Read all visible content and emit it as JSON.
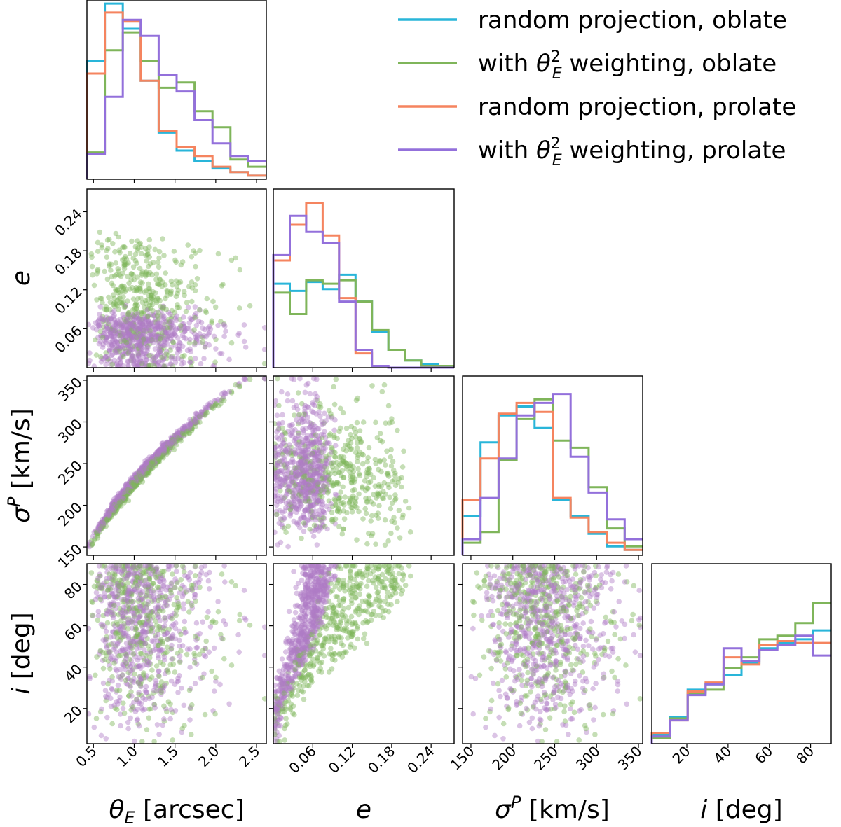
{
  "chart_data": {
    "type": "corner",
    "legend": {
      "placement": "top-right",
      "entries": [
        {
          "label": "random projection, oblate",
          "color": "#29b5d9"
        },
        {
          "label_pre": "with ",
          "label_math": "θ",
          "label_sub": "E",
          "label_sup": "2",
          "label_post": " weighting, oblate",
          "color": "#7fb55a"
        },
        {
          "label": "random projection, prolate",
          "color": "#f5845f"
        },
        {
          "label_pre": "with ",
          "label_math": "θ",
          "label_sub": "E",
          "label_sup": "2",
          "label_post": " weighting, prolate",
          "color": "#9370db"
        }
      ]
    },
    "scatter_colors": {
      "oblate": "#7fb55a",
      "prolate": "#b07cc6"
    },
    "variables": [
      {
        "key": "thetaE",
        "label": "θ",
        "label_sub": "E",
        "label_rest": " [arcsec]",
        "range": [
          0.42,
          2.62
        ],
        "ticks": [
          0.5,
          1.0,
          1.5,
          2.0,
          2.5
        ],
        "tick_labels": [
          "0.5",
          "1.0",
          "1.5",
          "2.0",
          "2.5"
        ]
      },
      {
        "key": "e",
        "label": "e",
        "range": [
          0.0,
          0.275
        ],
        "ticks": [
          0.06,
          0.12,
          0.18,
          0.24
        ],
        "tick_labels": [
          "0.06",
          "0.12",
          "0.18",
          "0.24"
        ]
      },
      {
        "key": "sigma",
        "label": "σ",
        "label_sup": "P",
        "label_rest": " [km/s]",
        "range": [
          140,
          355
        ],
        "ticks": [
          150,
          200,
          250,
          300,
          350
        ],
        "tick_labels": [
          "150",
          "200",
          "250",
          "300",
          "350"
        ]
      },
      {
        "key": "inc",
        "label": "i",
        "label_rest": " [deg]",
        "range": [
          3,
          90
        ],
        "ticks": [
          20,
          40,
          60,
          80
        ],
        "tick_labels": [
          "20",
          "40",
          "60",
          "80"
        ]
      }
    ],
    "histograms": {
      "thetaE": {
        "edges": [
          0.42,
          0.64,
          0.86,
          1.08,
          1.3,
          1.52,
          1.74,
          1.96,
          2.18,
          2.4,
          2.62
        ],
        "series": [
          {
            "name": "random projection, oblate",
            "color": "#29b5d9",
            "values": [
              0.66,
              0.98,
              0.84,
              0.55,
              0.26,
              0.16,
              0.1,
              0.06,
              0.04,
              0.02
            ]
          },
          {
            "name": "with θE² weighting, oblate",
            "color": "#7fb55a",
            "values": [
              0.15,
              0.72,
              0.82,
              0.66,
              0.51,
              0.54,
              0.38,
              0.29,
              0.11,
              0.07
            ]
          },
          {
            "name": "random projection, prolate",
            "color": "#f5845f",
            "values": [
              0.59,
              0.93,
              0.88,
              0.55,
              0.27,
              0.18,
              0.13,
              0.07,
              0.04,
              0.02
            ]
          },
          {
            "name": "with θE² weighting, prolate",
            "color": "#9370db",
            "values": [
              0.14,
              0.46,
              0.89,
              0.8,
              0.58,
              0.49,
              0.33,
              0.2,
              0.13,
              0.1
            ]
          }
        ]
      },
      "e": {
        "edges": [
          0.0,
          0.025,
          0.05,
          0.075,
          0.1,
          0.125,
          0.15,
          0.175,
          0.2,
          0.225,
          0.25,
          0.275
        ],
        "series": [
          {
            "name": "random projection, oblate",
            "color": "#29b5d9",
            "values": [
              0.47,
              0.43,
              0.48,
              0.44,
              0.52,
              0.37,
              0.2,
              0.1,
              0.04,
              0.02,
              0.01
            ]
          },
          {
            "name": "with θE² weighting, oblate",
            "color": "#7fb55a",
            "values": [
              0.42,
              0.3,
              0.49,
              0.47,
              0.49,
              0.37,
              0.21,
              0.1,
              0.04,
              0.01,
              0.01
            ]
          },
          {
            "name": "random projection, prolate",
            "color": "#f5845f",
            "values": [
              0.6,
              0.8,
              0.92,
              0.74,
              0.39,
              0.08,
              0.01,
              0.0,
              0.0,
              0.0,
              0.0
            ]
          },
          {
            "name": "with θE² weighting, prolate",
            "color": "#9370db",
            "values": [
              0.63,
              0.85,
              0.76,
              0.7,
              0.37,
              0.1,
              0.01,
              0.0,
              0.0,
              0.0,
              0.0
            ]
          }
        ]
      },
      "sigma": {
        "edges": [
          140,
          161.5,
          183,
          204.5,
          226,
          247.5,
          269,
          290.5,
          312,
          333.5,
          355
        ],
        "series": [
          {
            "name": "random projection, oblate",
            "color": "#29b5d9",
            "values": [
              0.22,
              0.63,
              0.78,
              0.83,
              0.71,
              0.31,
              0.22,
              0.12,
              0.05,
              0.03
            ]
          },
          {
            "name": "with θE² weighting, oblate",
            "color": "#7fb55a",
            "values": [
              0.07,
              0.13,
              0.53,
              0.76,
              0.87,
              0.64,
              0.6,
              0.38,
              0.15,
              0.05
            ]
          },
          {
            "name": "random projection, prolate",
            "color": "#f5845f",
            "values": [
              0.31,
              0.54,
              0.79,
              0.85,
              0.8,
              0.32,
              0.21,
              0.13,
              0.07,
              0.03
            ]
          },
          {
            "name": "with θE² weighting, prolate",
            "color": "#9370db",
            "values": [
              0.09,
              0.32,
              0.54,
              0.78,
              0.85,
              0.9,
              0.55,
              0.35,
              0.2,
              0.09
            ]
          }
        ]
      },
      "inc": {
        "edges": [
          3,
          11.7,
          20.4,
          29.1,
          37.8,
          46.5,
          55.2,
          63.9,
          72.6,
          81.3,
          90
        ],
        "series": [
          {
            "name": "random projection, oblate",
            "color": "#29b5d9",
            "values": [
              0.05,
              0.15,
              0.3,
              0.33,
              0.38,
              0.45,
              0.53,
              0.56,
              0.58,
              0.63
            ]
          },
          {
            "name": "with θE² weighting, oblate",
            "color": "#7fb55a",
            "values": [
              0.03,
              0.14,
              0.28,
              0.3,
              0.42,
              0.48,
              0.58,
              0.6,
              0.67,
              0.78
            ]
          },
          {
            "name": "random projection, prolate",
            "color": "#f5845f",
            "values": [
              0.06,
              0.13,
              0.29,
              0.34,
              0.48,
              0.44,
              0.55,
              0.57,
              0.56,
              0.56
            ]
          },
          {
            "name": "with θE² weighting, prolate",
            "color": "#9370db",
            "values": [
              0.04,
              0.13,
              0.27,
              0.33,
              0.53,
              0.46,
              0.52,
              0.55,
              0.6,
              0.49
            ]
          }
        ]
      }
    },
    "scatter_samples": {
      "n_oblate": 450,
      "n_prolate": 650,
      "relation_sigma_vs_thetaE": "sigma ≈ 228 * sqrt(thetaE)",
      "relation_inc_vs_e": "e grows with inclination; prolate e < oblate e at fixed i"
    }
  }
}
